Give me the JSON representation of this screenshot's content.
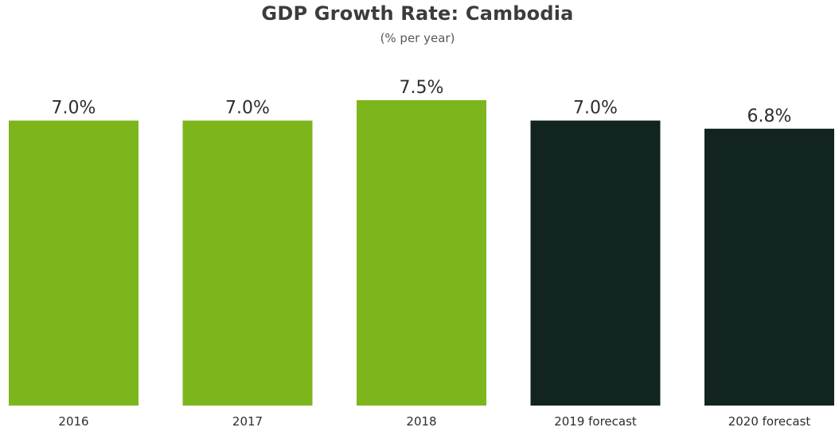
{
  "chart_data": {
    "type": "bar",
    "title": "GDP Growth Rate: Cambodia",
    "subtitle": "(% per year)",
    "categories": [
      "2016",
      "2017",
      "2018",
      "2019 forecast",
      "2020 forecast"
    ],
    "values": [
      7.0,
      7.0,
      7.5,
      7.0,
      6.8
    ],
    "data_labels": [
      "7.0%",
      "7.0%",
      "7.5%",
      "7.0%",
      "6.8%"
    ],
    "bar_colors": [
      "#7db51d",
      "#7db51d",
      "#7db51d",
      "#122420",
      "#122420"
    ],
    "xlabel": "",
    "ylabel": "",
    "ylim": [
      0,
      7.5
    ],
    "grid": false,
    "legend": "none"
  }
}
